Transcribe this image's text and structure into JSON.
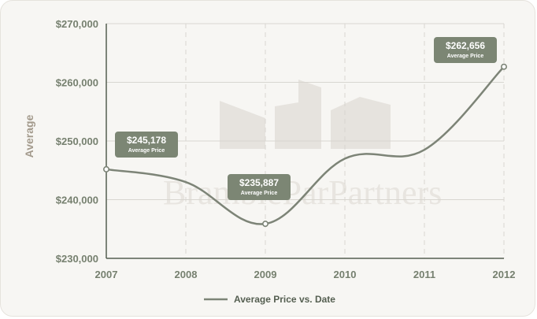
{
  "colors": {
    "line": "#7d8477",
    "callout_bg": "#7c8674",
    "grid": "#d8d6d0",
    "axis": "#555f51",
    "tick_text": "#76806f",
    "ylabel_text": "#a39a8c",
    "watermark": "#e6e3de"
  },
  "watermark": {
    "icon": "buildings-logo-icon",
    "text": "BrambleParPartners"
  },
  "chart_data": {
    "type": "line",
    "x": [
      2007,
      2008,
      2009,
      2010,
      2011,
      2012
    ],
    "x_tick_labels": [
      "2007",
      "2008",
      "2009",
      "2010",
      "2011",
      "2012"
    ],
    "series": [
      {
        "name": "Average Price vs. Date",
        "x": [
          2007,
          2008,
          2009,
          2010,
          2011,
          2012
        ],
        "values": [
          245178,
          243000,
          235887,
          247000,
          248500,
          262656
        ]
      }
    ],
    "ylim": [
      230000,
      270000
    ],
    "y_ticks": [
      230000,
      240000,
      250000,
      260000,
      270000
    ],
    "y_tick_labels": [
      "$230,000",
      "$240,000",
      "$250,000",
      "$260,000",
      "$270,000"
    ],
    "ylabel": "Average",
    "xlabel": "",
    "title": "",
    "grid": {
      "horizontal": true,
      "vertical_dashed": true
    },
    "legend": {
      "position": "bottom-center",
      "label": "Average Price vs. Date"
    },
    "annotations": [
      {
        "x": 2007,
        "y": 245178,
        "value": "$245,178",
        "label": "Average Price"
      },
      {
        "x": 2009,
        "y": 235887,
        "value": "$235,887",
        "label": "Average Price"
      },
      {
        "x": 2012,
        "y": 262656,
        "value": "$262,656",
        "label": "Average Price"
      }
    ]
  }
}
